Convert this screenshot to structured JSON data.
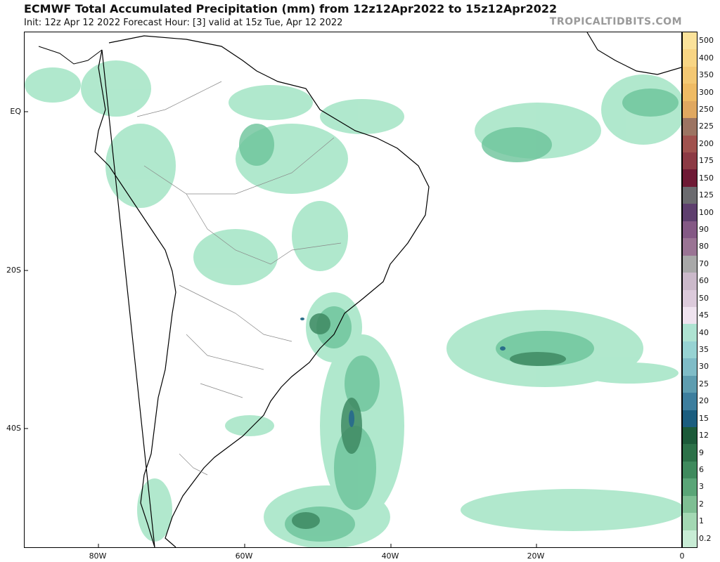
{
  "header": {
    "title": "ECMWF Total Accumulated Precipitation (mm) from 12z12Apr2022 to 15z12Apr2022",
    "subtitle": "Init: 12z Apr 12 2022   Forecast Hour: [3]   valid at 15z Tue, Apr 12 2022",
    "brand": "TROPICALTIDBITS.COM"
  },
  "map": {
    "lat_labels": [
      "EQ",
      "20S",
      "40S"
    ],
    "lon_labels": [
      "80W",
      "60W",
      "40W",
      "20W",
      "0"
    ],
    "colors": {
      "land_outline": "#000000",
      "border": "#888888",
      "light": "#a8e6c8",
      "mid": "#6cc39a",
      "dark": "#3e8a63",
      "deep": "#2a6e8a"
    }
  },
  "colorbar": {
    "levels": [
      {
        "label": "500",
        "color": "#fbe29a"
      },
      {
        "label": "400",
        "color": "#f8d584"
      },
      {
        "label": "350",
        "color": "#f4c873"
      },
      {
        "label": "300",
        "color": "#efbb64"
      },
      {
        "label": "250",
        "color": "#e0a860"
      },
      {
        "label": "225",
        "color": "#9c7462"
      },
      {
        "label": "200",
        "color": "#a0524e"
      },
      {
        "label": "175",
        "color": "#8c3a44"
      },
      {
        "label": "150",
        "color": "#6e1a35"
      },
      {
        "label": "125",
        "color": "#6b6b6f"
      },
      {
        "label": "100",
        "color": "#5e3f6e"
      },
      {
        "label": "90",
        "color": "#845985"
      },
      {
        "label": "80",
        "color": "#9a7494"
      },
      {
        "label": "70",
        "color": "#a8a8a8"
      },
      {
        "label": "60",
        "color": "#cbb9ca"
      },
      {
        "label": "50",
        "color": "#dccadb"
      },
      {
        "label": "45",
        "color": "#efe3ef"
      },
      {
        "label": "40",
        "color": "#aee3d2"
      },
      {
        "label": "35",
        "color": "#97d3d3"
      },
      {
        "label": "30",
        "color": "#7fbcc7"
      },
      {
        "label": "25",
        "color": "#5e9db0"
      },
      {
        "label": "20",
        "color": "#3d7e9e"
      },
      {
        "label": "15",
        "color": "#1b5d7f"
      },
      {
        "label": "12",
        "color": "#1c5a39"
      },
      {
        "label": "9",
        "color": "#2c7148"
      },
      {
        "label": "6",
        "color": "#3f8a5d"
      },
      {
        "label": "3",
        "color": "#5aa577"
      },
      {
        "label": "2",
        "color": "#7ebf93"
      },
      {
        "label": "1",
        "color": "#a3d8b3"
      },
      {
        "label": "0.2",
        "color": "#c8ecd5"
      }
    ]
  }
}
